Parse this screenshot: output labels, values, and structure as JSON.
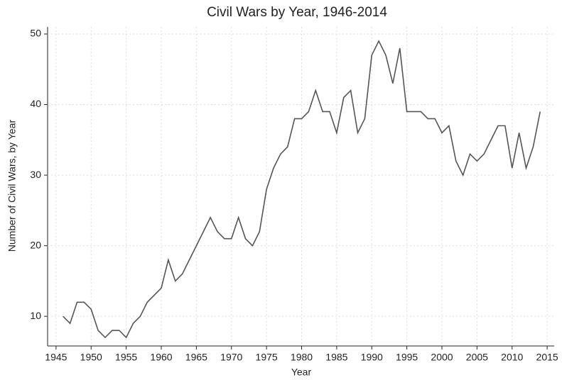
{
  "chart_data": {
    "type": "line",
    "title": "Civil Wars by Year, 1946-2014",
    "xlabel": "Year",
    "ylabel": "Number of Civil Wars, by Year",
    "x": [
      1946,
      1947,
      1948,
      1949,
      1950,
      1951,
      1952,
      1953,
      1954,
      1955,
      1956,
      1957,
      1958,
      1959,
      1960,
      1961,
      1962,
      1963,
      1964,
      1965,
      1966,
      1967,
      1968,
      1969,
      1970,
      1971,
      1972,
      1973,
      1974,
      1975,
      1976,
      1977,
      1978,
      1979,
      1980,
      1981,
      1982,
      1983,
      1984,
      1985,
      1986,
      1987,
      1988,
      1989,
      1990,
      1991,
      1992,
      1993,
      1994,
      1995,
      1996,
      1997,
      1998,
      1999,
      2000,
      2001,
      2002,
      2003,
      2004,
      2005,
      2006,
      2007,
      2008,
      2009,
      2010,
      2011,
      2012,
      2013,
      2014
    ],
    "series": [
      {
        "name": "Civil wars",
        "color": "#555555",
        "values": [
          10,
          9,
          12,
          12,
          11,
          8,
          7,
          8,
          8,
          7,
          9,
          10,
          12,
          13,
          14,
          18,
          15,
          16,
          18,
          20,
          22,
          24,
          22,
          21,
          21,
          24,
          21,
          20,
          22,
          28,
          31,
          33,
          34,
          38,
          38,
          39,
          42,
          39,
          39,
          36,
          41,
          42,
          36,
          38,
          47,
          49,
          47,
          43,
          48,
          39,
          39,
          39,
          38,
          38,
          36,
          37,
          32,
          30,
          33,
          32,
          33,
          35,
          37,
          37,
          31,
          36,
          31,
          34,
          39
        ]
      }
    ],
    "xlim": [
      1944,
      2016
    ],
    "xticks": [
      1945,
      1950,
      1955,
      1960,
      1965,
      1970,
      1975,
      1980,
      1985,
      1990,
      1995,
      2000,
      2005,
      2010,
      2015
    ],
    "ylim": [
      6,
      51
    ],
    "yticks": [
      10,
      20,
      30,
      40,
      50
    ],
    "grid": true
  }
}
